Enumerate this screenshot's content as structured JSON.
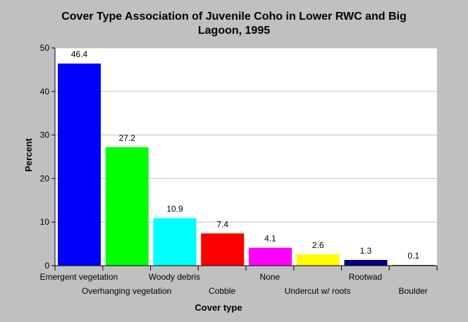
{
  "chart_data": {
    "type": "bar",
    "title_lines": [
      "Cover Type Association of Juvenile Coho in Lower RWC and Big",
      "Lagoon, 1995"
    ],
    "xlabel": "Cover type",
    "ylabel": "Percent",
    "ylim": [
      0,
      50
    ],
    "yticks": [
      0,
      10,
      20,
      30,
      40,
      50
    ],
    "grid": true,
    "categories": [
      "Emergent vegetation",
      "Overhanging vegetation",
      "Woody debris",
      "Cobble",
      "None",
      "Undercut w/ roots",
      "Rootwad",
      "Boulder"
    ],
    "values": [
      46.4,
      27.2,
      10.9,
      7.4,
      4.1,
      2.6,
      1.3,
      0.1
    ],
    "value_labels": [
      "46.4",
      "27.2",
      "10.9",
      "7.4",
      "4.1",
      "2.6",
      "1.3",
      "0.1"
    ],
    "colors": [
      "#0000ff",
      "#00ff00",
      "#00ffff",
      "#ff0000",
      "#ff00ff",
      "#ffff00",
      "#000080",
      "#008000"
    ],
    "plot_background": "#ffffff",
    "gridline_color": "#c0c0c0"
  }
}
